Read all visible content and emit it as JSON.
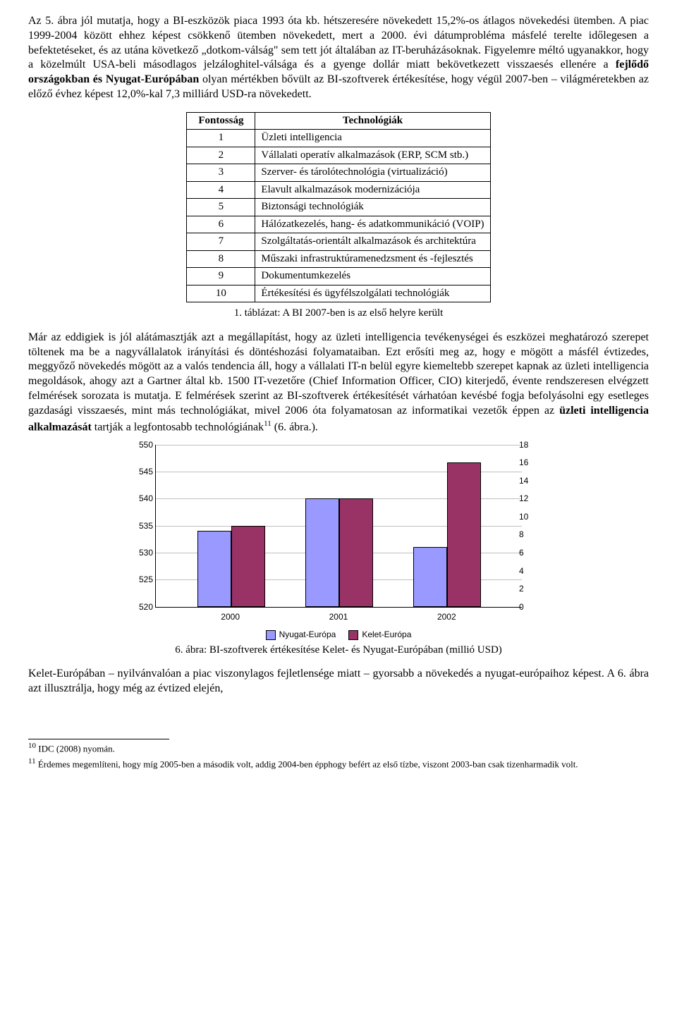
{
  "para1_a": "Az 5. ábra jól mutatja, hogy a BI-eszközök piaca 1993 óta kb. hétszeresére növekedett 15,2%-os átlagos növekedési ütemben. A piac 1999-2004 között ehhez képest csökkenő ütemben növekedett, mert a 2000. évi dátumprobléma másfelé terelte időlegesen a befektetéseket, és az utána következő „dotkom-válság\" sem tett jót általában az IT-beruházásoknak.",
  "para1_b": "Figyelemre méltó ugyanakkor, hogy a közelmúlt USA-beli másodlagos jelzáloghitel-válsága és a gyenge dollár miatt bekövetkezett visszaesés ellenére a ",
  "para1_c_bold": "fejlődő országokban és Nyugat-Európában",
  "para1_d": " olyan mértékben bővült az BI-szoftverek értékesítése, hogy végül 2007-ben – világméretekben az előző évhez képest 12,0%-kal 7,3 milliárd USD-ra növekedett.",
  "table": {
    "col1": "Fontosság",
    "col2": "Technológiák",
    "rows": [
      {
        "rank": "1",
        "tech": "Üzleti intelligencia"
      },
      {
        "rank": "2",
        "tech": "Vállalati operatív alkalmazások (ERP, SCM stb.)"
      },
      {
        "rank": "3",
        "tech": "Szerver- és tárolótechnológia (virtualizáció)"
      },
      {
        "rank": "4",
        "tech": "Elavult alkalmazások modernizációja"
      },
      {
        "rank": "5",
        "tech": "Biztonsági technológiák"
      },
      {
        "rank": "6",
        "tech": "Hálózatkezelés, hang- és adatkommunikáció (VOIP)"
      },
      {
        "rank": "7",
        "tech": "Szolgáltatás-orientált alkalmazások és architektúra"
      },
      {
        "rank": "8",
        "tech": "Műszaki infrastruktúramenedzsment és -fejlesztés"
      },
      {
        "rank": "9",
        "tech": "Dokumentumkezelés"
      },
      {
        "rank": "10",
        "tech": "Értékesítési és ügyfélszolgálati technológiák"
      }
    ]
  },
  "table_caption": "1. táblázat: A BI 2007-ben is az első helyre került",
  "para2_a": "Már az eddigiek is jól alátámasztják azt a megállapítást, hogy az üzleti intelligencia tevékenységei és eszközei meghatározó szerepet töltenek ma be a nagyvállalatok irányítási és döntéshozási folyamataiban. Ezt erősíti meg az, hogy e mögött a másfél évtizedes, meggyőző növekedés mögött az a valós tendencia áll, hogy a vállalati IT-n belül egyre kiemeltebb szerepet kapnak az üzleti intelligencia megoldások, ahogy azt a Gartner által kb. 1500 IT-vezetőre (Chief Information Officer, CIO) kiterjedő, évente rendszeresen elvégzett felmérések sorozata is mutatja. E felmérések szerint az BI-szoftverek értékesítését várhatóan kevésbé fogja befolyásolni egy esetleges gazdasági visszaesés, mint más technológiákat, mivel 2006 óta folyamatosan az informatikai vezetők éppen az ",
  "para2_b_bold": "üzleti intelligencia alkalmazását",
  "para2_c": " tartják a legfontosabb technológiának",
  "para2_sup": "11",
  "para2_d": " (6. ábra.).",
  "chart": {
    "type": "bar",
    "categories": [
      "2000",
      "2001",
      "2002"
    ],
    "series": [
      {
        "name": "Nyugat-Európa",
        "color": "#9999ff",
        "values": [
          534,
          540,
          531
        ]
      },
      {
        "name": "Kelet-Európa",
        "color": "#993366",
        "values": [
          9,
          12,
          16
        ]
      }
    ],
    "y_left": {
      "min": 520,
      "max": 550,
      "ticks": [
        520,
        525,
        530,
        535,
        540,
        545,
        550
      ]
    },
    "y_right": {
      "min": 0,
      "max": 18,
      "ticks": [
        0,
        2,
        4,
        6,
        8,
        10,
        12,
        14,
        16,
        18
      ]
    },
    "grid_color": "#000000",
    "background": "#ffffff",
    "font_family": "Arial",
    "font_size": 12
  },
  "chart_caption": "6. ábra: BI-szoftverek értékesítése Kelet- és Nyugat-Európában (millió USD)",
  "para3": "Kelet-Európában – nyilvánvalóan a piac viszonylagos fejletlensége miatt – gyorsabb a növekedés a nyugat-európaihoz képest. A 6. ábra azt illusztrálja, hogy még az évtized elején,",
  "footnotes": {
    "f10": "IDC (2008) nyomán.",
    "f11": "Érdemes megemlíteni, hogy míg 2005-ben a második volt, addig 2004-ben épphogy befért az első tízbe, viszont 2003-ban csak tizenharmadik volt."
  }
}
